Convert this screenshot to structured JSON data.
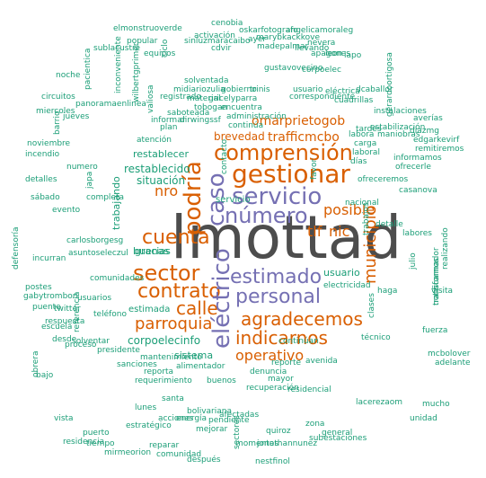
{
  "wordcloud": {
    "colors": {
      "orange": "#d95f02",
      "purple": "#7570b3",
      "teal": "#1b9e77",
      "gray": "#4d4d4d"
    },
    "big": "lmottad",
    "large": [
      "gestionar",
      "comprensión",
      "servicio",
      "número",
      "cuenta",
      "podría",
      "caso",
      "sector",
      "contrato",
      "estimado",
      "personal",
      "calle",
      "agradecemos",
      "parroquia",
      "indicarnos",
      "eléctrico",
      "municipio",
      "posible",
      "tlf",
      "nic",
      "operativo"
    ],
    "medium": [
      "omarprietogob",
      "brevedad",
      "trafficmcbo",
      "nro",
      "restablecido",
      "restablecer",
      "situación",
      "usuario",
      "buenas",
      "gracias",
      "corpoelecinfo",
      "atención",
      "trabajando",
      "servicio",
      "sistema",
      "estimada"
    ],
    "small": [
      "cenobia",
      "oskarfotografo",
      "angelicamoraleg",
      "elmonstruoverde",
      "activación",
      "marybkackkove",
      "nevera",
      "sublacustre",
      "popular",
      "ciclo",
      "sinluzmaracaibo",
      "cdvir",
      "ayer",
      "madepalmar",
      "noche",
      "pacientica",
      "equipos",
      "inconveniente",
      "llevando",
      "apagones",
      "leon",
      "iapo",
      "wilbertgprimer",
      "tobogan",
      "gobierno",
      "correspondiente",
      "instalaciones",
      "registrado",
      "material",
      "encuentra",
      "administración",
      "continúa",
      "contacto",
      "favor",
      "días",
      "tardes",
      "carga",
      "laboral",
      "labora",
      "maniobras",
      "estabilización",
      "averías",
      "diazmg",
      "edgarkevirf",
      "remitiremos",
      "informamos",
      "ofrecerle",
      "ofreceremos",
      "casanova",
      "nacional",
      "trabajos",
      "labores",
      "detalle",
      "julio",
      "realizando",
      "electricidad",
      "usuarios",
      "comunidades",
      "teléfono",
      "referencia",
      "informar",
      "plan",
      "clases",
      "transformador",
      "alimentador",
      "reporte",
      "buenos",
      "denuncia",
      "mayor",
      "recuperación",
      "continúan",
      "avenida",
      "residencial",
      "santa",
      "reporta",
      "mantenimiento",
      "requerimiento",
      "sanciones",
      "técnico",
      "zona",
      "general",
      "subestaciones",
      "reparar",
      "comunidad",
      "después",
      "nestfinol",
      "jonathannunez",
      "quiroz",
      "lacerezaom",
      "afectadas",
      "sectores",
      "solventar",
      "desde",
      "proceso",
      "presidente",
      "respuesta",
      "gabytrombon",
      "twitter",
      "puente",
      "postes",
      "evento",
      "detalles",
      "circuitos",
      "miercoles",
      "jueves",
      "barrio",
      "panoramaenlinea",
      "noviembre",
      "incendio",
      "numero",
      "sábado",
      "japa",
      "completa",
      "carlosborgesg",
      "asuntoseleczul",
      "incurran",
      "defensoría",
      "escuela",
      "obrera",
      "bajo",
      "vista",
      "residencia",
      "puerto",
      "tiempo",
      "mirmeorion",
      "dirwingssf",
      "solventada",
      "midiariozulia",
      "gricelyparra",
      "valiosa",
      "saboteada",
      "gustavovecino",
      "corpoelec",
      "usuario",
      "eléctrica",
      "dcaballor",
      "cuadrillas",
      "trinis",
      "pendiente",
      "estratégico",
      "bolivariana",
      "lunes",
      "energía",
      "acciones",
      "mejorar",
      "momentos",
      "unidad",
      "mucho",
      "mcbolover",
      "adelante",
      "notificarnos",
      "fuerza",
      "gerardoortigosa",
      "haga",
      "visita",
      "jairamc",
      "kerenarevalo",
      "validando",
      "limpieza",
      "solvente",
      "hidrológica",
      "interrupción",
      "dolarietoday",
      "sabotaje",
      "tormenta"
    ]
  }
}
